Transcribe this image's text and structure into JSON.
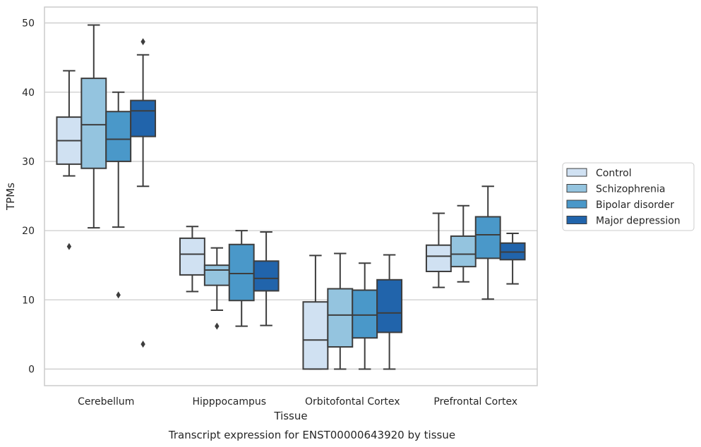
{
  "chart_data": {
    "type": "box",
    "caption": "Transcript expression for ENST00000643920 by tissue",
    "xlabel": "Tissue",
    "ylabel": "TPMs",
    "ylim": [
      -2.4,
      52.3
    ],
    "yticks": [
      0,
      10,
      20,
      30,
      40,
      50
    ],
    "grid": "horizontal",
    "legend_position": "right",
    "categories": [
      "Cerebellum",
      "Hipppocampus",
      "Orbitofontal Cortex",
      "Prefrontal Cortex"
    ],
    "series": [
      {
        "name": "Control",
        "color": "#d0e1f2",
        "boxes": [
          {
            "whislo": 27.9,
            "q1": 29.6,
            "med": 33.0,
            "q3": 36.4,
            "whishi": 43.1,
            "fliers": [
              17.7
            ]
          },
          {
            "whislo": 11.2,
            "q1": 13.6,
            "med": 16.6,
            "q3": 18.9,
            "whishi": 20.6,
            "fliers": []
          },
          {
            "whislo": 0.0,
            "q1": 0.0,
            "med": 4.2,
            "q3": 9.7,
            "whishi": 16.4,
            "fliers": []
          },
          {
            "whislo": 11.8,
            "q1": 14.1,
            "med": 16.3,
            "q3": 17.9,
            "whishi": 22.5,
            "fliers": []
          }
        ]
      },
      {
        "name": "Schizophrenia",
        "color": "#94c4df",
        "boxes": [
          {
            "whislo": 20.4,
            "q1": 29.0,
            "med": 35.3,
            "q3": 42.0,
            "whishi": 49.7,
            "fliers": []
          },
          {
            "whislo": 8.5,
            "q1": 12.1,
            "med": 14.3,
            "q3": 15.0,
            "whishi": 17.5,
            "fliers": [
              6.2
            ]
          },
          {
            "whislo": 0.0,
            "q1": 3.2,
            "med": 7.8,
            "q3": 11.6,
            "whishi": 16.7,
            "fliers": []
          },
          {
            "whislo": 12.6,
            "q1": 14.8,
            "med": 16.6,
            "q3": 19.2,
            "whishi": 23.6,
            "fliers": []
          }
        ]
      },
      {
        "name": "Bipolar disorder",
        "color": "#4a98c9",
        "boxes": [
          {
            "whislo": 20.5,
            "q1": 30.0,
            "med": 33.2,
            "q3": 37.2,
            "whishi": 40.0,
            "fliers": [
              10.7
            ]
          },
          {
            "whislo": 6.2,
            "q1": 9.9,
            "med": 13.8,
            "q3": 18.0,
            "whishi": 20.0,
            "fliers": []
          },
          {
            "whislo": 0.0,
            "q1": 4.5,
            "med": 7.8,
            "q3": 11.4,
            "whishi": 15.3,
            "fliers": []
          },
          {
            "whislo": 10.1,
            "q1": 16.0,
            "med": 19.4,
            "q3": 22.0,
            "whishi": 26.4,
            "fliers": []
          }
        ]
      },
      {
        "name": "Major depression",
        "color": "#2164ab",
        "boxes": [
          {
            "whislo": 26.4,
            "q1": 33.6,
            "med": 37.3,
            "q3": 38.8,
            "whishi": 45.4,
            "fliers": [
              47.3,
              3.6
            ]
          },
          {
            "whislo": 6.3,
            "q1": 11.3,
            "med": 13.1,
            "q3": 15.6,
            "whishi": 19.8,
            "fliers": []
          },
          {
            "whislo": 0.0,
            "q1": 5.3,
            "med": 8.1,
            "q3": 12.9,
            "whishi": 16.5,
            "fliers": []
          },
          {
            "whislo": 12.3,
            "q1": 15.8,
            "med": 16.9,
            "q3": 18.2,
            "whishi": 19.6,
            "fliers": []
          }
        ]
      }
    ]
  }
}
